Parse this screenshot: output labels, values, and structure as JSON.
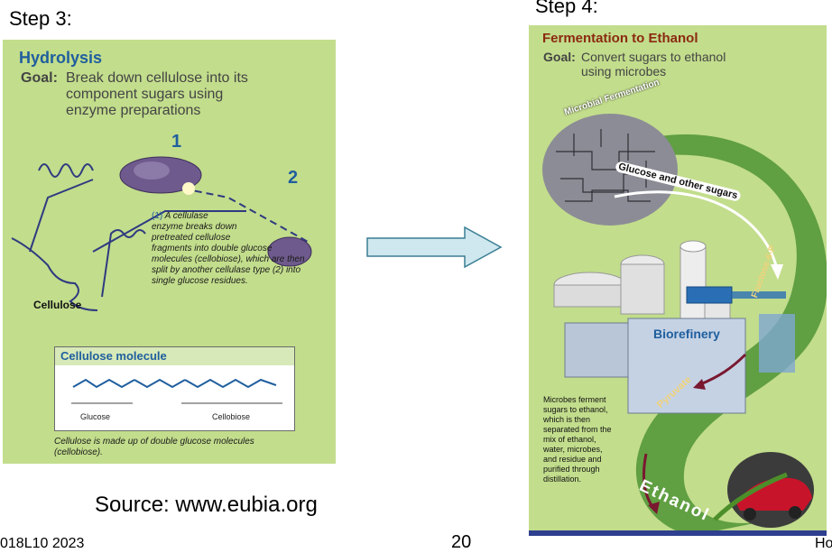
{
  "step3": {
    "label": "Step 3:",
    "title": "Hydrolysis",
    "goal_label": "Goal:",
    "goal_lines": [
      "Break down cellulose into its",
      "component sugars using",
      "enzyme preparations"
    ],
    "num1": "1",
    "num2": "2",
    "caption_lines": [
      {
        "pre": "(1)",
        "text": " A cellulase"
      },
      {
        "pre": "",
        "text": "enzyme breaks down"
      },
      {
        "pre": "",
        "text": "pretreated cellulose"
      },
      {
        "pre": "",
        "text": "fragments into double glucose"
      },
      {
        "pre": "",
        "text": "molecules (cellobiose), which are then"
      },
      {
        "pre": "",
        "text": "split by another cellulase type (2) into"
      },
      {
        "pre": "",
        "text": "single glucose residues."
      }
    ],
    "cellulose_label": "Cellulose",
    "molecule_title": "Cellulose molecule",
    "glucose_label": "Glucose",
    "cellobiose_label": "Cellobiose",
    "molecule_caption_lines": [
      "Cellulose is made up of double glucose molecules",
      "(cellobiose)."
    ]
  },
  "step4": {
    "label": "Step 4:",
    "title": "Fermentation to Ethanol",
    "goal_label": "Goal:",
    "goal_lines": [
      "Convert sugars to ethanol",
      "using microbes"
    ],
    "microbial_label": "Microbial Fermentation",
    "glucose_label": "Glucose and other sugars",
    "fructose_label": "Fructose-6-P",
    "biorefinery_label": "Biorefinery",
    "pyruvate_label": "Pyruvate",
    "ethanol_label": "Ethanol",
    "desc_lines": [
      "Microbes ferment",
      "sugars to ethanol,",
      "which is then",
      "separated from the",
      "mix of ethanol,",
      "water, microbes,",
      "and residue and",
      "purified through",
      "distillation."
    ]
  },
  "source": "Source: www.eubia.org",
  "footer_left": "018L10 2023",
  "page_number": "20",
  "footer_right": "Ho",
  "colors": {
    "panel": "#c2dd8c",
    "title_blue": "#1f5e9e",
    "title_brown": "#8b2a10",
    "ribbon": "#3f8a2a",
    "arrow_fill": "#cfe7ee"
  }
}
